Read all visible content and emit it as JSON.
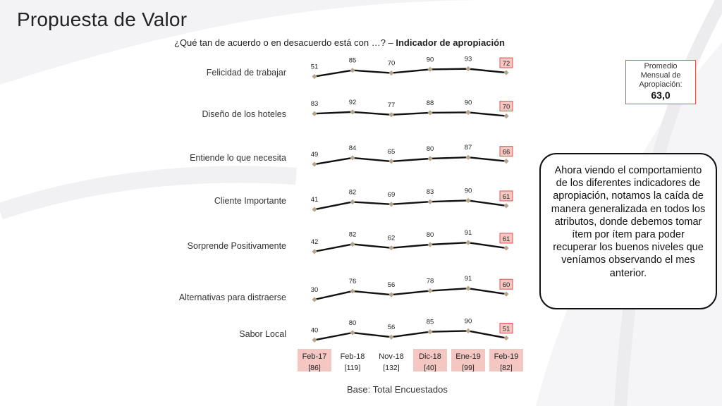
{
  "title": "Propuesta de Valor",
  "subtitle_question": "¿Qué tan de acuerdo o en desacuerdo está con …? – ",
  "subtitle_bold": "Indicador de apropiación",
  "promedio": {
    "label_lines": [
      "Promedio",
      "Mensual de",
      "Apropiación:"
    ],
    "value": "63,0"
  },
  "callout_text": "Ahora viendo el comportamiento de los diferentes indicadores de apropiación, notamos la caída de manera generalizada en todos los atributos, donde debemos tomar ítem por ítem para poder recuperar los buenos niveles que veníamos observando el mes anterior.",
  "base_text": "Base: Total Encuestados",
  "colors": {
    "line": "#111111",
    "marker": "#b5a58a",
    "highlight_fill": "#f4c7c3",
    "highlight_border": "#d9534f"
  },
  "chart_data": {
    "type": "line",
    "categories": [
      "Feb-17",
      "Feb-18",
      "Nov-18",
      "Dic-18",
      "Ene-19",
      "Feb-19"
    ],
    "bases": [
      "[86]",
      "[119]",
      "[132]",
      "[40]",
      "[99]",
      "[82]"
    ],
    "highlighted_categories": [
      "Feb-17",
      "Dic-18",
      "Ene-19",
      "Feb-19"
    ],
    "highlighted_last_point": true,
    "series": [
      {
        "name": "Felicidad de trabajar",
        "values": [
          51,
          85,
          70,
          90,
          93,
          72
        ]
      },
      {
        "name": "Diseño de los hoteles",
        "values": [
          83,
          92,
          77,
          88,
          90,
          70
        ]
      },
      {
        "name": "Entiende lo que necesita",
        "values": [
          49,
          84,
          65,
          80,
          87,
          66
        ]
      },
      {
        "name": "Cliente Importante",
        "values": [
          41,
          82,
          69,
          83,
          90,
          61
        ]
      },
      {
        "name": "Sorprende Positivamente",
        "values": [
          42,
          82,
          62,
          80,
          91,
          61
        ]
      },
      {
        "name": "Alternativas para distraerse",
        "values": [
          30,
          76,
          56,
          78,
          91,
          60
        ]
      },
      {
        "name": "Sabor Local",
        "values": [
          40,
          80,
          56,
          85,
          90,
          51
        ]
      }
    ]
  }
}
